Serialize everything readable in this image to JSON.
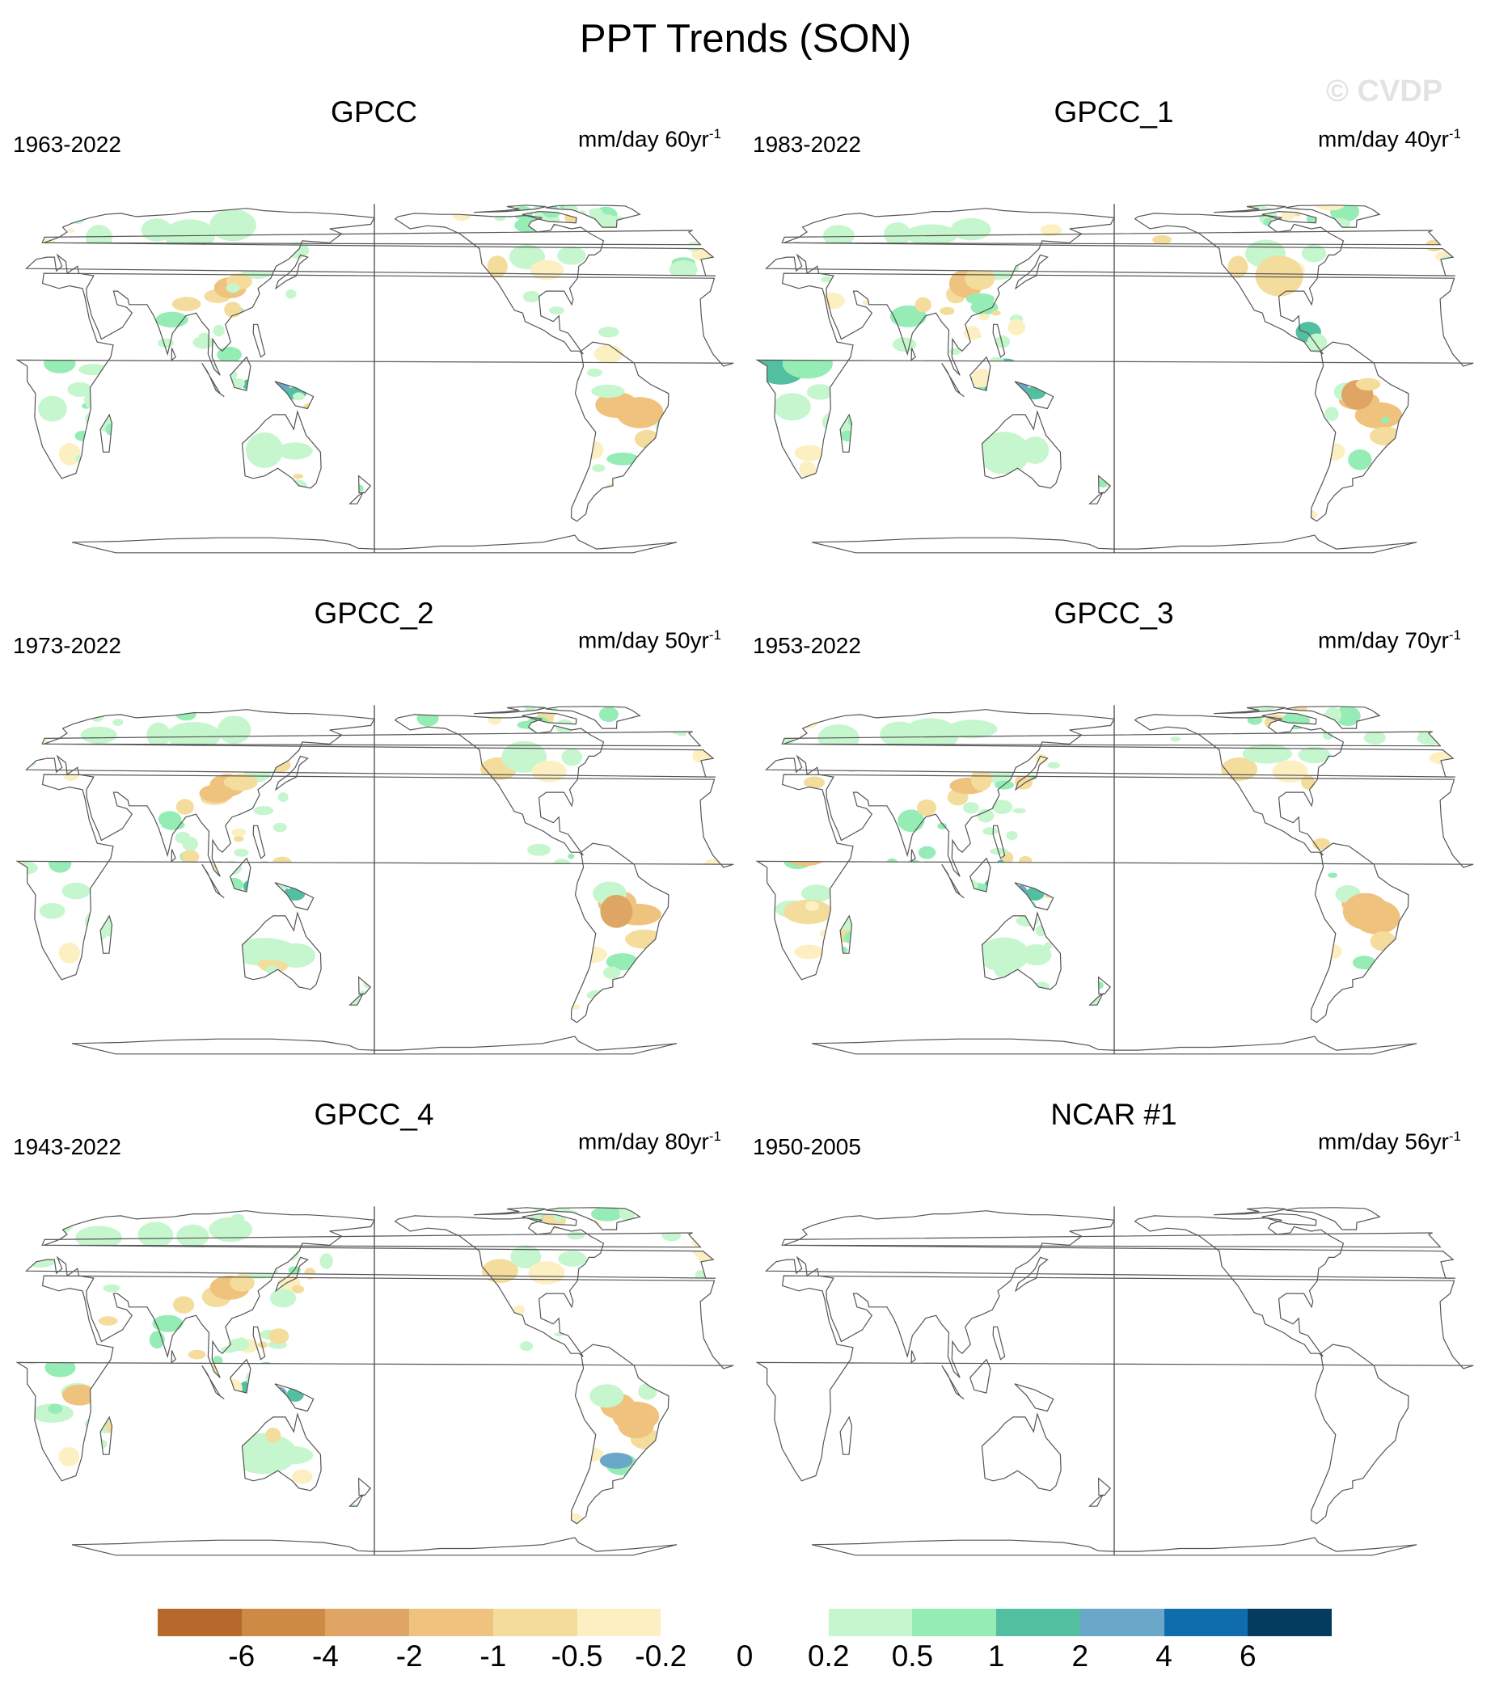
{
  "title": "PPT Trends (SON)",
  "watermark": "© CVDP",
  "panels": [
    {
      "title": "GPCC",
      "period": "1963-2022",
      "units": "mm/day 60yr",
      "units_exp": "-1"
    },
    {
      "title": "GPCC_1",
      "period": "1983-2022",
      "units": "mm/day 40yr",
      "units_exp": "-1"
    },
    {
      "title": "GPCC_2",
      "period": "1973-2022",
      "units": "mm/day 50yr",
      "units_exp": "-1"
    },
    {
      "title": "GPCC_3",
      "period": "1953-2022",
      "units": "mm/day 70yr",
      "units_exp": "-1"
    },
    {
      "title": "GPCC_4",
      "period": "1943-2022",
      "units": "mm/day 80yr",
      "units_exp": "-1"
    },
    {
      "title": "NCAR #1",
      "period": "1950-2005",
      "units": "mm/day 56yr",
      "units_exp": "-1"
    }
  ],
  "colorbar": {
    "colors": [
      "#b5692a",
      "#cd8a44",
      "#dfa565",
      "#efc27d",
      "#f4dc9c",
      "#fcf0c3",
      "#ffffff",
      "#ffffff",
      "#c6f6cd",
      "#96ecb5",
      "#53bfa1",
      "#6aa7c9",
      "#0f6dad",
      "#033c5f"
    ],
    "labels": [
      "-6",
      "-4",
      "-2",
      "-1",
      "-0.5",
      "-0.2",
      "0",
      "0.2",
      "0.5",
      "1",
      "2",
      "4",
      "6"
    ]
  }
}
